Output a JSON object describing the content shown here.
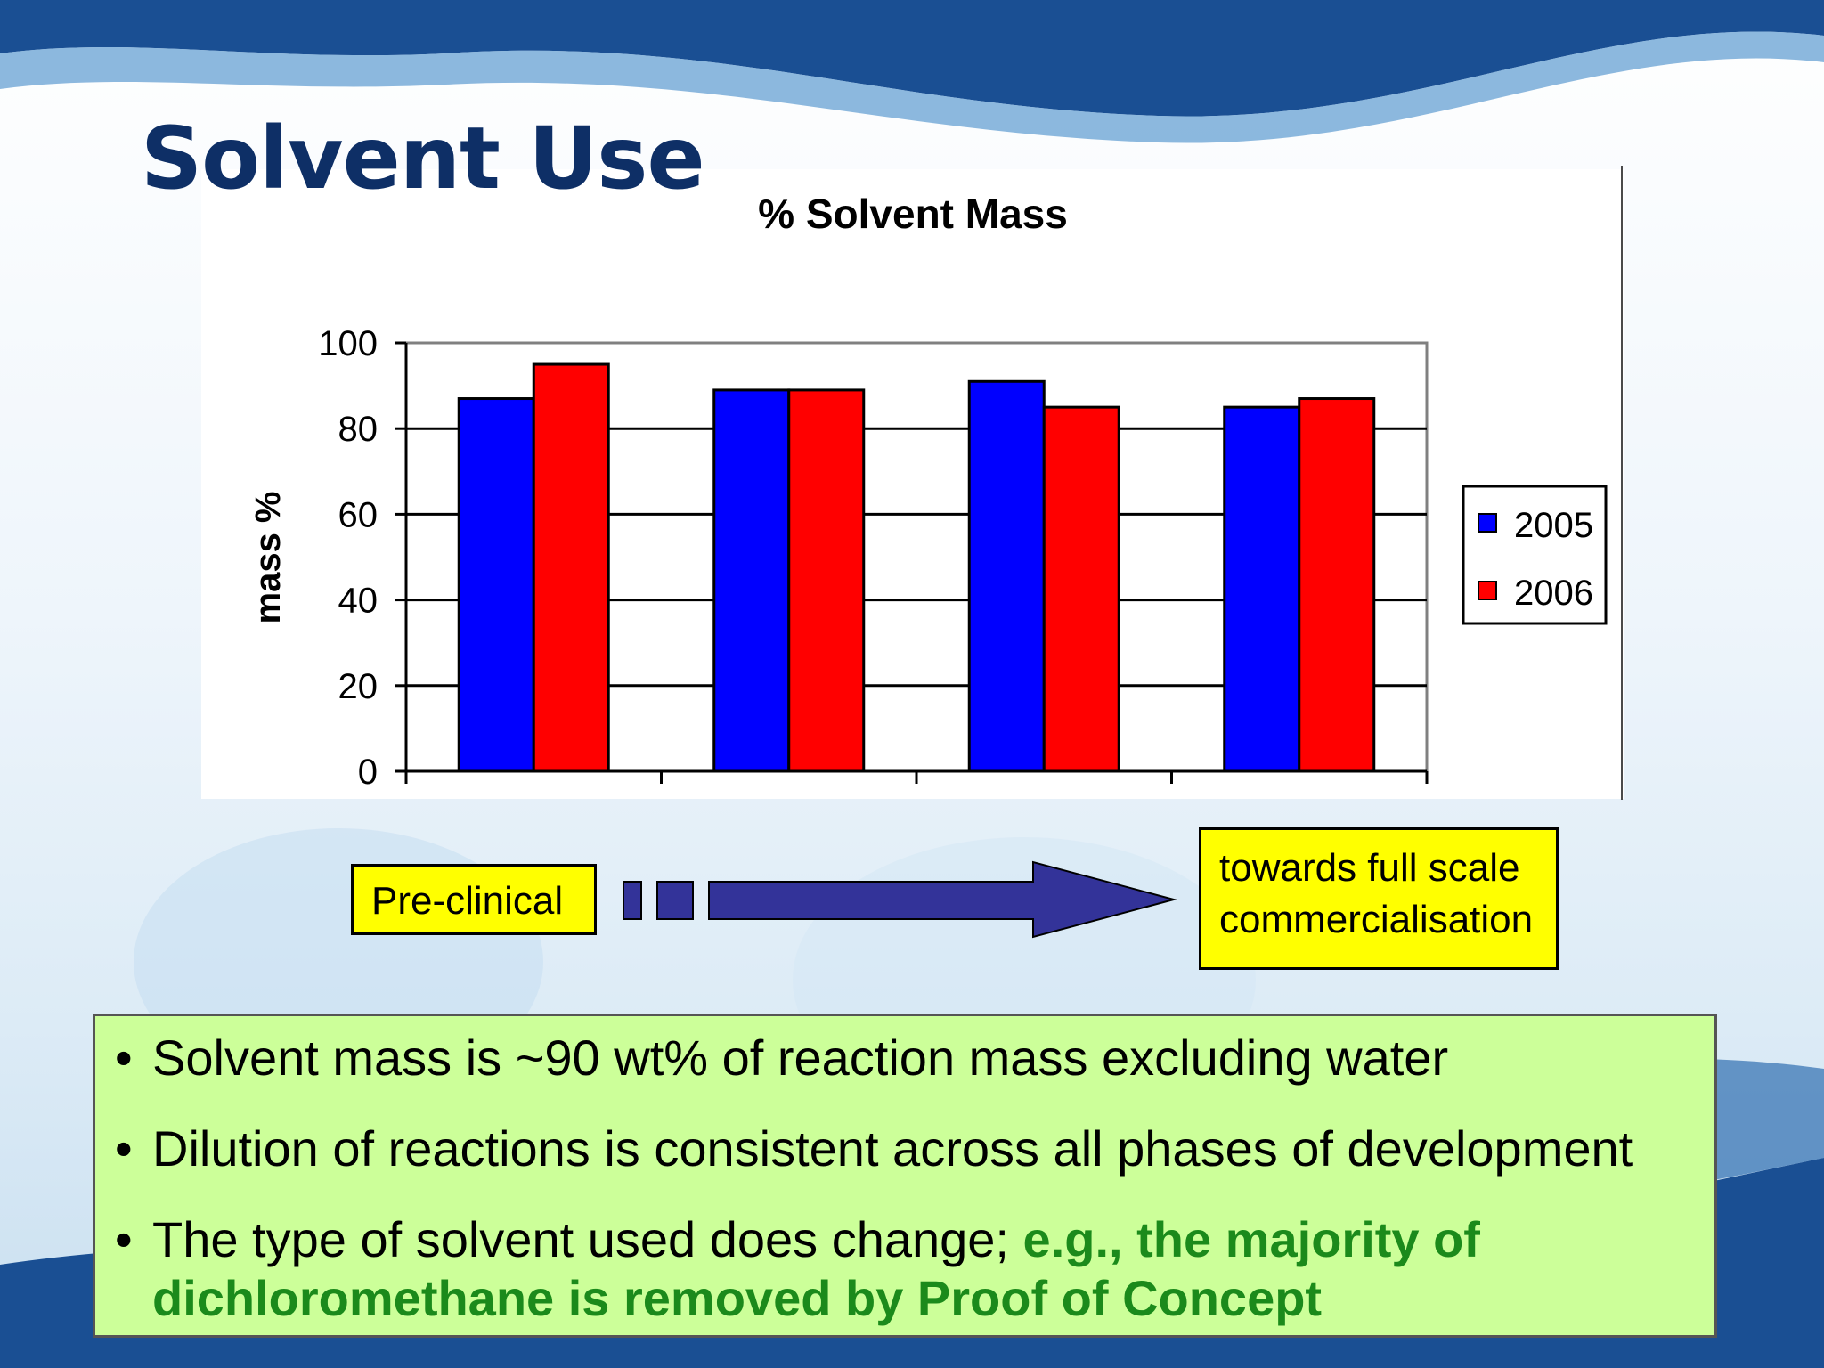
{
  "slide": {
    "title": "Solvent Use"
  },
  "chart_data": {
    "type": "bar",
    "title": "% Solvent Mass",
    "xlabel": "",
    "ylabel": "mass %",
    "ylim": [
      0,
      100
    ],
    "yticks": [
      "0",
      "20",
      "40",
      "60",
      "80",
      "100"
    ],
    "categories": [
      "",
      "",
      "",
      ""
    ],
    "grid": true,
    "legend_position": "right",
    "series": [
      {
        "name": "2005",
        "color": "#0000ff",
        "values": [
          87,
          89,
          91,
          85
        ]
      },
      {
        "name": "2006",
        "color": "#ff0000",
        "values": [
          95,
          89,
          85,
          87
        ]
      }
    ]
  },
  "flow": {
    "start_label": "Pre-clinical",
    "end_label_line1": "towards full scale",
    "end_label_line2": "commercialisation",
    "arrow_color": "#333399",
    "box_color": "#ffff00"
  },
  "bullets": {
    "items": [
      {
        "text": "Solvent mass is ~90 wt% of reaction mass excluding water",
        "highlight": ""
      },
      {
        "text": "Dilution of reactions is consistent across all phases of development",
        "highlight": ""
      },
      {
        "text": "The type of solvent used does change; ",
        "highlight": "e.g., the majority of dichloromethane is removed by Proof of Concept"
      }
    ],
    "bullet_char": "•",
    "highlight_color": "#1b8a1b"
  }
}
